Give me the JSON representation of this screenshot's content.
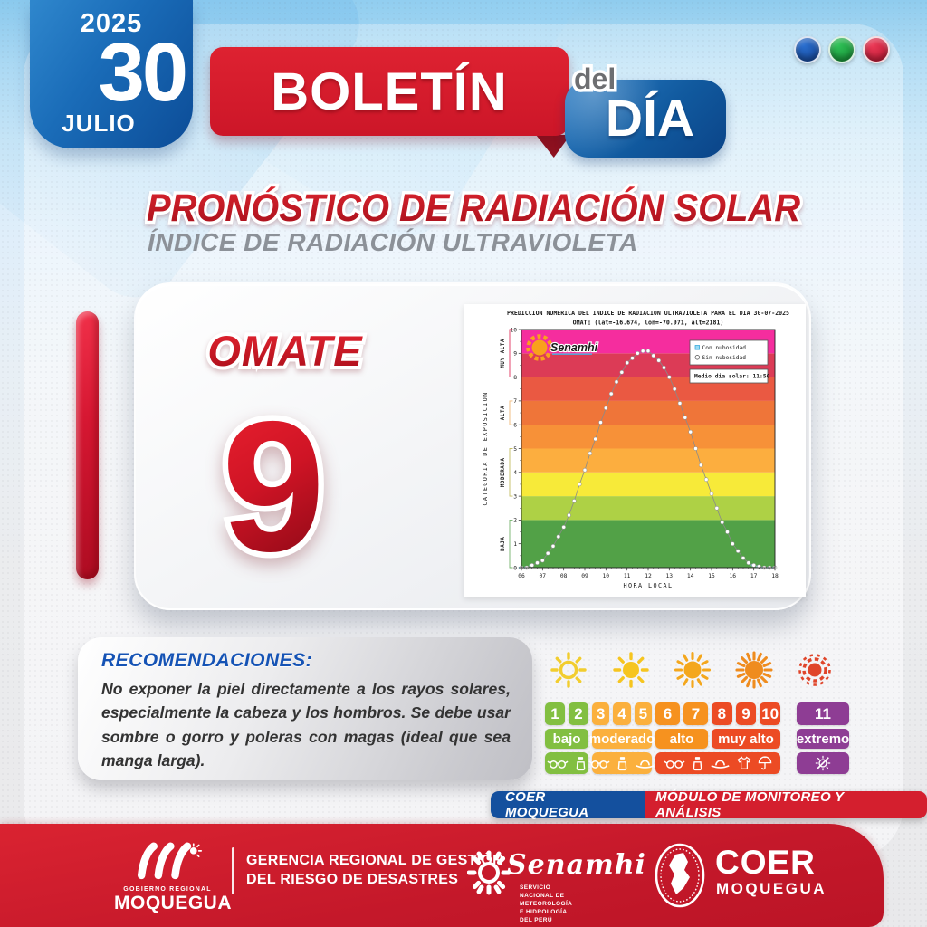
{
  "header": {
    "year": "2025",
    "day": "30",
    "month": "JULIO",
    "boletin": "BOLETÍN",
    "del": "del",
    "dia": "DÍA",
    "dot_colors": [
      "#1c55ab",
      "#23a844",
      "#d8213f"
    ]
  },
  "titles": {
    "main": "PRONÓSTICO DE RADIACIÓN SOLAR",
    "subtitle": "ÍNDICE DE RADIACIÓN ULTRAVIOLETA"
  },
  "station": {
    "name": "OMATE",
    "uv_value": "9"
  },
  "chart_data": {
    "type": "line",
    "title": "PREDICCION NUMERICA DEL INDICE DE RADIACION ULTRAVIOLETA PARA EL DIA 30-07-2025",
    "subtitle": "OMATE (lat=-16.674, lon=-70.971, alt=2181)",
    "xlabel": "HORA LOCAL",
    "ylabel": "CATEGORIA DE EXPOSICION",
    "xlim": [
      6,
      18
    ],
    "ylim": [
      0,
      10
    ],
    "x_ticks": [
      "06",
      "07",
      "08",
      "09",
      "10",
      "11",
      "12",
      "13",
      "14",
      "15",
      "16",
      "17",
      "18"
    ],
    "legend": [
      {
        "label": "Con nubosidad",
        "marker_color": "#9adcf5"
      },
      {
        "label": "Sin nubosidad",
        "marker_color": "#ffffff"
      }
    ],
    "annotation": "Medio dia solar: 11:50",
    "watermark": "Senamhi",
    "bands": [
      {
        "from": 0,
        "to": 2,
        "color": "#52a147"
      },
      {
        "from": 2,
        "to": 3,
        "color": "#aed145"
      },
      {
        "from": 3,
        "to": 4,
        "color": "#f7ea39"
      },
      {
        "from": 4,
        "to": 5,
        "color": "#fcae3f"
      },
      {
        "from": 5,
        "to": 6,
        "color": "#f79138"
      },
      {
        "from": 6,
        "to": 7,
        "color": "#ef7539"
      },
      {
        "from": 7,
        "to": 8,
        "color": "#ea5942"
      },
      {
        "from": 8,
        "to": 9,
        "color": "#dc3b56"
      },
      {
        "from": 9,
        "to": 10,
        "color": "#f52d9e"
      }
    ],
    "categories": [
      {
        "label": "BAJA",
        "from": 0,
        "to": 2,
        "color": "#74b36c"
      },
      {
        "label": "MODERADA",
        "from": 3,
        "to": 5,
        "color": "#c5bd62"
      },
      {
        "label": "ALTA",
        "from": 6,
        "to": 7,
        "color": "#f0b978"
      },
      {
        "label": "MUY ALTA",
        "from": 8,
        "to": 10,
        "color": "#e0315c"
      }
    ],
    "x": [
      6,
      6.25,
      6.5,
      6.75,
      7,
      7.25,
      7.5,
      7.75,
      8,
      8.25,
      8.5,
      8.75,
      9,
      9.25,
      9.5,
      9.75,
      10,
      10.25,
      10.5,
      10.75,
      11,
      11.25,
      11.5,
      11.75,
      12,
      12.25,
      12.5,
      12.75,
      13,
      13.25,
      13.5,
      13.75,
      14,
      14.25,
      14.5,
      14.75,
      15,
      15.25,
      15.5,
      15.75,
      16,
      16.25,
      16.5,
      16.75,
      17,
      17.25,
      17.5,
      17.75,
      18
    ],
    "y": [
      0,
      0,
      0.1,
      0.2,
      0.3,
      0.6,
      0.9,
      1.3,
      1.7,
      2.2,
      2.8,
      3.5,
      4.1,
      4.8,
      5.4,
      6.1,
      6.7,
      7.3,
      7.8,
      8.2,
      8.6,
      8.8,
      9.0,
      9.1,
      9.1,
      8.9,
      8.7,
      8.4,
      8.0,
      7.5,
      6.9,
      6.3,
      5.7,
      5.0,
      4.3,
      3.7,
      3.1,
      2.5,
      1.9,
      1.5,
      1.0,
      0.7,
      0.4,
      0.2,
      0.1,
      0.05,
      0,
      0,
      0
    ]
  },
  "recommendations": {
    "heading": "RECOMENDACIONES:",
    "body": "No exponer la piel directamente a los rayos solares, especialmente la cabeza y los hombros. Se debe usar sombre o gorro y poleras con magas (ideal que sea manga larga)."
  },
  "uv_scale": {
    "sun_centers": [
      26,
      95,
      163,
      231,
      298
    ],
    "suns": [
      {
        "style": "outline",
        "color": "#f2cd2e"
      },
      {
        "style": "filled8",
        "color": "#f6c51f"
      },
      {
        "style": "filled12",
        "color": "#f4a71d"
      },
      {
        "style": "filled16",
        "color": "#ef8c1e"
      },
      {
        "style": "extreme",
        "color": "#e0452a"
      }
    ],
    "columns": [
      {
        "x": 0,
        "w": 48
      },
      {
        "x": 52,
        "w": 66
      },
      {
        "x": 122,
        "w": 58
      },
      {
        "x": 184,
        "w": 76
      },
      {
        "x": 278,
        "w": 58
      }
    ],
    "levels": [
      {
        "numbers": [
          "1",
          "2"
        ],
        "label": "bajo",
        "color": "#82bf41"
      },
      {
        "numbers": [
          "3",
          "4",
          "5"
        ],
        "label": "moderado",
        "color": "#fbb03d"
      },
      {
        "numbers": [
          "6",
          "7"
        ],
        "label": "alto",
        "color": "#f6921f"
      },
      {
        "numbers": [
          "8",
          "9",
          "10"
        ],
        "label": "muy alto",
        "color": "#ec4b24"
      },
      {
        "numbers": [
          "11"
        ],
        "label": "extremo",
        "color": "#8e3d94"
      }
    ],
    "icon_bars": [
      {
        "from": 0,
        "to": 0,
        "color": "#82bf41",
        "icons": [
          "sunglasses-icon",
          "sunscreen-icon"
        ]
      },
      {
        "from": 1,
        "to": 1,
        "color": "#fbb03d",
        "icons": [
          "sunglasses-icon",
          "sunscreen-icon",
          "hat-icon"
        ]
      },
      {
        "from": 2,
        "to": 3,
        "color": "#ec4b24",
        "icons": [
          "sunglasses-icon",
          "sunscreen-icon",
          "hat-icon",
          "shirt-icon",
          "umbrella-icon"
        ]
      },
      {
        "from": 4,
        "to": 4,
        "color": "#8e3d94",
        "icons": [
          "sun-crossed-icon"
        ]
      }
    ]
  },
  "badges": {
    "left": "COER MOQUEGUA",
    "right": "MÓDULO DE MONITOREO Y ANÁLISIS"
  },
  "footer": {
    "gov_small": "GOBIERNO REGIONAL",
    "gov_big": "MOQUEGUA",
    "office_line1": "GERENCIA REGIONAL DE GESTIÓN",
    "office_line2": "DEL RIESGO DE DESASTRES",
    "senamhi_name": "Senamhi",
    "senamhi_sub1": "SERVICIO NACIONAL DE METEOROLOGÍA",
    "senamhi_sub2": "E HIDROLOGÍA DEL PERÚ",
    "coer_name": "COER",
    "coer_region": "MOQUEGUA"
  }
}
